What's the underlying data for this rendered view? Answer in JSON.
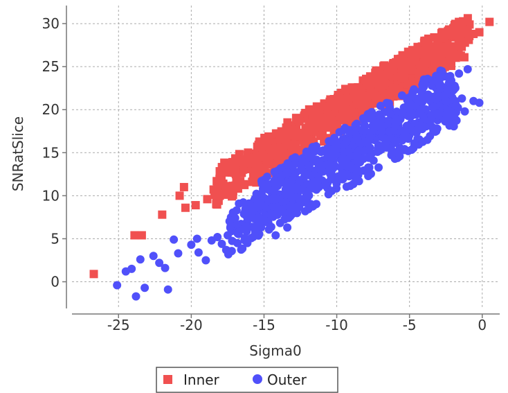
{
  "chart_data": {
    "type": "scatter",
    "title": "",
    "xlabel": "Sigma0",
    "ylabel": "SNRatSlice",
    "xlim": [
      -28.2,
      1.2
    ],
    "ylim": [
      -3.1,
      32.1
    ],
    "xticks": [
      -25,
      -20,
      -15,
      -10,
      -5,
      0
    ],
    "yticks": [
      0,
      5,
      10,
      15,
      20,
      25,
      30
    ],
    "grid": true,
    "legend_position": "bottom",
    "series": [
      {
        "name": "Inner",
        "color": "#f05050",
        "marker": "square",
        "points": [
          [
            -26.7,
            0.9
          ],
          [
            -23.9,
            5.4
          ],
          [
            -23.4,
            5.4
          ],
          [
            -22.0,
            7.8
          ],
          [
            -20.8,
            10.0
          ],
          [
            -20.4,
            8.6
          ],
          [
            -20.5,
            11.0
          ],
          [
            -19.7,
            8.9
          ],
          [
            -18.9,
            9.6
          ],
          [
            -18.2,
            10.8
          ],
          [
            -17.8,
            11.4
          ],
          [
            -17.2,
            12.7
          ],
          [
            -16.9,
            11.7
          ],
          [
            -16.3,
            13.9
          ],
          [
            -15.9,
            13.8
          ],
          [
            -15.4,
            15.2
          ],
          [
            -15.1,
            14.7
          ],
          [
            -14.5,
            15.8
          ],
          [
            -14.2,
            15.5
          ],
          [
            -13.6,
            16.8
          ],
          [
            -13.3,
            15.9
          ],
          [
            -12.8,
            17.5
          ],
          [
            -12.4,
            17.2
          ],
          [
            -11.9,
            18.3
          ],
          [
            -11.5,
            18.6
          ],
          [
            -11.0,
            19.1
          ],
          [
            -10.6,
            19.7
          ],
          [
            -10.1,
            20.4
          ],
          [
            -9.6,
            20.6
          ],
          [
            -9.2,
            21.3
          ],
          [
            -8.8,
            21.8
          ],
          [
            -8.3,
            22.2
          ],
          [
            -7.9,
            22.8
          ],
          [
            -7.5,
            23.2
          ],
          [
            -7.0,
            23.9
          ],
          [
            -6.5,
            24.1
          ],
          [
            -6.1,
            24.8
          ],
          [
            -5.6,
            25.3
          ],
          [
            -5.2,
            25.6
          ],
          [
            -4.8,
            26.2
          ],
          [
            -4.3,
            26.6
          ],
          [
            -3.9,
            27.1
          ],
          [
            -3.4,
            27.4
          ],
          [
            -3.0,
            27.9
          ],
          [
            -2.6,
            28.3
          ],
          [
            -2.2,
            28.6
          ],
          [
            -1.8,
            29.0
          ],
          [
            -1.4,
            29.5
          ],
          [
            -1.0,
            29.3
          ],
          [
            -0.6,
            28.8
          ],
          [
            -0.2,
            29.0
          ],
          [
            0.5,
            30.2
          ],
          [
            -1.6,
            30.2
          ],
          [
            -2.8,
            28.9
          ]
        ],
        "bands": [
          {
            "x_start": -18.5,
            "x_end": -0.8,
            "y_at_start": 10.8,
            "slope": 1.01,
            "width": 2.3
          },
          {
            "x_start": -15.8,
            "x_end": -1.4,
            "y_at_start": 14.1,
            "slope": 1.01,
            "width": 2.0
          }
        ]
      },
      {
        "name": "Outer",
        "color": "#5050fa",
        "marker": "circle",
        "points": [
          [
            -25.1,
            -0.4
          ],
          [
            -24.1,
            1.5
          ],
          [
            -23.8,
            -1.7
          ],
          [
            -24.5,
            1.2
          ],
          [
            -23.2,
            -0.7
          ],
          [
            -23.5,
            2.6
          ],
          [
            -22.2,
            2.2
          ],
          [
            -21.8,
            1.6
          ],
          [
            -21.6,
            -0.9
          ],
          [
            -20.9,
            3.3
          ],
          [
            -21.2,
            4.9
          ],
          [
            -20.0,
            4.3
          ],
          [
            -19.5,
            3.4
          ],
          [
            -19.0,
            2.5
          ],
          [
            -18.6,
            4.8
          ],
          [
            -18.2,
            5.2
          ],
          [
            -17.9,
            4.4
          ],
          [
            -17.3,
            6.4
          ],
          [
            -16.8,
            5.6
          ],
          [
            -16.2,
            6.2
          ],
          [
            -15.6,
            5.8
          ],
          [
            -15.0,
            7.2
          ],
          [
            -14.5,
            7.9
          ],
          [
            -13.9,
            8.2
          ],
          [
            -13.2,
            8.5
          ],
          [
            -12.6,
            9.6
          ],
          [
            -12.1,
            10.3
          ],
          [
            -11.4,
            10.7
          ],
          [
            -10.8,
            11.2
          ],
          [
            -10.2,
            12.0
          ],
          [
            -9.6,
            12.6
          ],
          [
            -9.0,
            13.3
          ],
          [
            -8.4,
            13.9
          ],
          [
            -7.8,
            14.4
          ],
          [
            -7.2,
            15.1
          ],
          [
            -6.6,
            15.6
          ],
          [
            -6.0,
            16.4
          ],
          [
            -5.4,
            16.9
          ],
          [
            -4.8,
            17.6
          ],
          [
            -4.2,
            18.1
          ],
          [
            -3.6,
            18.7
          ],
          [
            -3.0,
            19.3
          ],
          [
            -2.4,
            19.9
          ],
          [
            -1.8,
            20.5
          ],
          [
            -1.4,
            21.3
          ],
          [
            -0.6,
            21.0
          ],
          [
            -0.2,
            20.8
          ],
          [
            -1.2,
            19.8
          ],
          [
            -2.2,
            23.9
          ],
          [
            -1.6,
            24.2
          ],
          [
            -1.0,
            24.7
          ],
          [
            -2.9,
            22.8
          ],
          [
            -3.4,
            23.4
          ],
          [
            -16.3,
            8.2
          ],
          [
            -15.2,
            8.9
          ],
          [
            -14.2,
            5.4
          ],
          [
            -13.4,
            6.3
          ],
          [
            -19.6,
            5.0
          ],
          [
            -17.6,
            3.7
          ],
          [
            -22.6,
            3.0
          ]
        ],
        "bands": [
          {
            "x_start": -17.5,
            "x_end": -1.6,
            "y_at_start": 5.6,
            "slope": 0.98,
            "width": 2.8
          },
          {
            "x_start": -15.5,
            "x_end": -2.2,
            "y_at_start": 9.3,
            "slope": 1.02,
            "width": 2.5
          }
        ]
      }
    ]
  }
}
